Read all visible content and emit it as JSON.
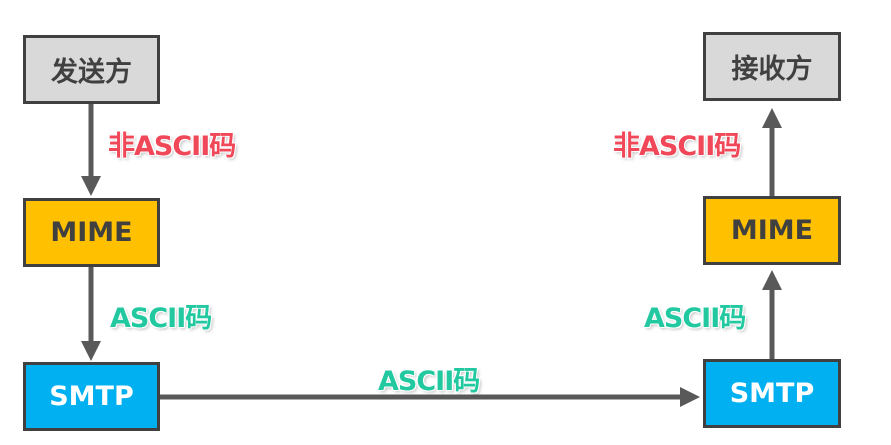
{
  "colors": {
    "box_gray": "#d9d9d9",
    "box_orange": "#ffc000",
    "box_blue": "#00b0f0",
    "arrow": "#595959",
    "label_red": "#f04858",
    "label_green": "#22c9a0"
  },
  "sender": {
    "title": "发送方",
    "label_non_ascii": "非ASCII码",
    "mime": "MIME",
    "label_ascii": "ASCII码",
    "smtp": "SMTP"
  },
  "transfer": {
    "label_ascii": "ASCII码"
  },
  "receiver": {
    "title": "接收方",
    "label_non_ascii": "非ASCII码",
    "mime": "MIME",
    "label_ascii": "ASCII码",
    "smtp": "SMTP"
  }
}
